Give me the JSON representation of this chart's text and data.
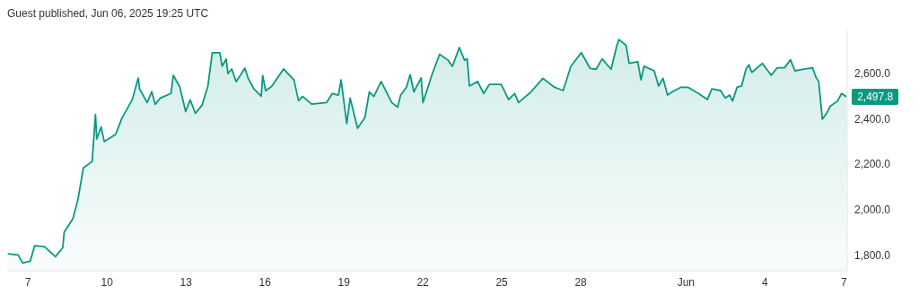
{
  "chart_data": {
    "type": "area",
    "title": "Guest published, Jun 06, 2025 19:25 UTC",
    "x": [
      "2025-05-06T05:30",
      "2025-05-06T15:00",
      "2025-05-06T19:00",
      "2025-05-07T02:00",
      "2025-05-07T06:00",
      "2025-05-07T15:00",
      "2025-05-08T01:00",
      "2025-05-08T07:40",
      "2025-05-08T09:00",
      "2025-05-08T17:00",
      "2025-05-08T21:30",
      "2025-05-09T02:30",
      "2025-05-09T10:30",
      "2025-05-09T13:30",
      "2025-05-09T14:40",
      "2025-05-09T18:40",
      "2025-05-09T21:30",
      "2025-05-10T08:00",
      "2025-05-10T13:40",
      "2025-05-10T23:00",
      "2025-05-11T04:30",
      "2025-05-11T05:45",
      "2025-05-11T12:40",
      "2025-05-11T16:50",
      "2025-05-11T20:00",
      "2025-05-12T00:40",
      "2025-05-12T10:20",
      "2025-05-12T12:30",
      "2025-05-12T18:30",
      "2025-05-12T23:45",
      "2025-05-13T03:50",
      "2025-05-13T08:40",
      "2025-05-13T14:40",
      "2025-05-13T20:00",
      "2025-05-14T00:00",
      "2025-05-14T07:00",
      "2025-05-14T09:00",
      "2025-05-14T12:40",
      "2025-05-14T14:20",
      "2025-05-14T17:45",
      "2025-05-14T21:50",
      "2025-05-15T05:45",
      "2025-05-15T08:40",
      "2025-05-15T14:00",
      "2025-05-15T20:40",
      "2025-05-15T22:00",
      "2025-05-16T00:40",
      "2025-05-16T06:15",
      "2025-05-16T17:00",
      "2025-05-17T02:30",
      "2025-05-17T06:40",
      "2025-05-17T10:30",
      "2025-05-17T18:40",
      "2025-05-18T08:10",
      "2025-05-18T13:30",
      "2025-05-18T19:00",
      "2025-05-18T21:30",
      "2025-05-19T02:40",
      "2025-05-19T05:45",
      "2025-05-19T12:30",
      "2025-05-19T19:10",
      "2025-05-19T23:15",
      "2025-05-20T03:20",
      "2025-05-20T10:00",
      "2025-05-20T19:40",
      "2025-05-21T01:00",
      "2025-05-21T03:50",
      "2025-05-21T09:00",
      "2025-05-21T12:30",
      "2025-05-21T15:50",
      "2025-05-21T22:30",
      "2025-05-22T00:10",
      "2025-05-22T08:10",
      "2025-05-22T15:20",
      "2025-05-22T23:00",
      "2025-05-23T03:00",
      "2025-05-23T09:20",
      "2025-05-23T14:00",
      "2025-05-23T16:30",
      "2025-05-23T18:30",
      "2025-05-24T02:00",
      "2025-05-24T07:30",
      "2025-05-24T12:40",
      "2025-05-24T23:30",
      "2025-05-25T06:15",
      "2025-05-25T11:45",
      "2025-05-25T15:20",
      "2025-05-26T02:40",
      "2025-05-26T13:30",
      "2025-05-27T00:15",
      "2025-05-27T08:00",
      "2025-05-27T15:00",
      "2025-05-28T00:30",
      "2025-05-28T08:40",
      "2025-05-28T14:00",
      "2025-05-28T19:30",
      "2025-05-29T03:40",
      "2025-05-29T09:00",
      "2025-05-29T10:50",
      "2025-05-29T17:20",
      "2025-05-29T20:10",
      "2025-05-30T04:00",
      "2025-05-30T07:00",
      "2025-05-30T09:40",
      "2025-05-30T19:00",
      "2025-05-30T23:00",
      "2025-05-31T03:00",
      "2025-05-31T07:10",
      "2025-05-31T11:20",
      "2025-05-31T19:10",
      "2025-06-01T02:00",
      "2025-06-01T11:20",
      "2025-06-01T19:30",
      "2025-06-01T23:30",
      "2025-06-02T07:40",
      "2025-06-02T11:45",
      "2025-06-02T15:50",
      "2025-06-02T18:30",
      "2025-06-02T22:30",
      "2025-06-03T02:40",
      "2025-06-03T06:40",
      "2025-06-03T09:20",
      "2025-06-03T12:00",
      "2025-06-03T21:40",
      "2025-06-04T05:45",
      "2025-06-04T11:00",
      "2025-06-04T17:45",
      "2025-06-04T23:15",
      "2025-06-05T03:20",
      "2025-06-05T11:30",
      "2025-06-05T19:30",
      "2025-06-05T22:20",
      "2025-06-06T01:00",
      "2025-06-06T04:20",
      "2025-06-06T08:20",
      "2025-06-06T11:30",
      "2025-06-06T18:15",
      "2025-06-06T21:50",
      "2025-06-07T02:20"
    ],
    "series": [
      {
        "color": "#089981",
        "values": [
          1805,
          1800,
          1764,
          1772,
          1840,
          1836,
          1792,
          1832,
          1900,
          1960,
          2044,
          2184,
          2212,
          2420,
          2312,
          2364,
          2300,
          2332,
          2404,
          2484,
          2580,
          2532,
          2472,
          2520,
          2464,
          2492,
          2512,
          2592,
          2540,
          2432,
          2484,
          2424,
          2460,
          2544,
          2692,
          2692,
          2632,
          2664,
          2600,
          2620,
          2564,
          2624,
          2580,
          2532,
          2500,
          2592,
          2524,
          2544,
          2620,
          2572,
          2480,
          2499,
          2465,
          2472,
          2512,
          2505,
          2572,
          2379,
          2492,
          2359,
          2405,
          2519,
          2499,
          2565,
          2472,
          2452,
          2505,
          2539,
          2595,
          2519,
          2581,
          2472,
          2592,
          2685,
          2659,
          2632,
          2715,
          2659,
          2665,
          2545,
          2565,
          2512,
          2552,
          2552,
          2485,
          2512,
          2472,
          2519,
          2579,
          2539,
          2525,
          2632,
          2692,
          2622,
          2619,
          2665,
          2619,
          2725,
          2750,
          2725,
          2645,
          2652,
          2572,
          2632,
          2612,
          2545,
          2579,
          2505,
          2519,
          2539,
          2539,
          2512,
          2485,
          2532,
          2525,
          2492,
          2505,
          2479,
          2539,
          2545,
          2619,
          2639,
          2605,
          2645,
          2592,
          2625,
          2625,
          2661,
          2612,
          2619,
          2625,
          2585,
          2565,
          2399,
          2425,
          2456,
          2479,
          2512,
          2497.8
        ]
      }
    ],
    "xlim": [
      "2025-05-06T05:00",
      "2025-06-07T03:00"
    ],
    "xticks": [
      {
        "value": "2025-05-07",
        "label": "7"
      },
      {
        "value": "2025-05-10",
        "label": "10"
      },
      {
        "value": "2025-05-13",
        "label": "13"
      },
      {
        "value": "2025-05-16",
        "label": "16"
      },
      {
        "value": "2025-05-19",
        "label": "19"
      },
      {
        "value": "2025-05-22",
        "label": "22"
      },
      {
        "value": "2025-05-25",
        "label": "25"
      },
      {
        "value": "2025-05-28",
        "label": "28"
      },
      {
        "value": "2025-06-01",
        "label": "Jun"
      },
      {
        "value": "2025-06-04",
        "label": "4"
      },
      {
        "value": "2025-06-07",
        "label": "7"
      }
    ],
    "ylim": [
      1730,
      2790
    ],
    "yticks": [
      {
        "value": 1800,
        "label": "1,800.0"
      },
      {
        "value": 2000,
        "label": "2,000.0"
      },
      {
        "value": 2200,
        "label": "2,200.0"
      },
      {
        "value": 2400,
        "label": "2,400.0"
      },
      {
        "value": 2600,
        "label": "2,600.0"
      }
    ],
    "annotations": [
      {
        "text": "2,497.8",
        "x": "2025-06-07T02:20",
        "y": 2497.8
      }
    ]
  }
}
